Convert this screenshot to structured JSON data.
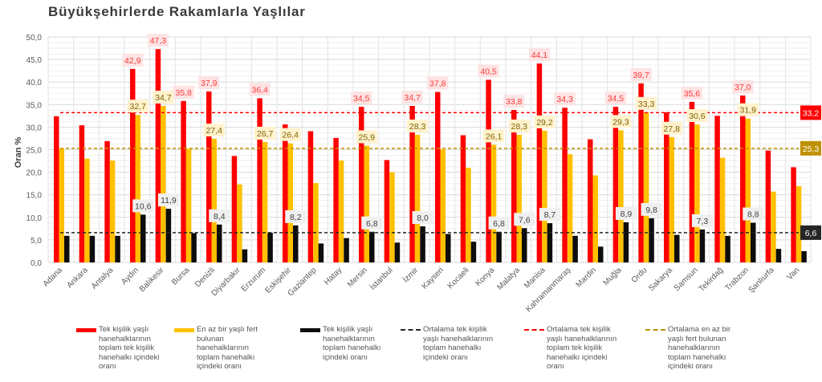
{
  "chart_data": {
    "type": "bar",
    "title": "Büyükşehirlerde Rakamlarla Yaşlılar",
    "xlabel": "",
    "ylabel": "Oran %",
    "ylim": [
      0,
      50
    ],
    "yticks": [
      "0,0",
      "5,0",
      "10,0",
      "15,0",
      "20,0",
      "25,0",
      "30,0",
      "35,0",
      "40,0",
      "45,0",
      "50,0"
    ],
    "grid": true,
    "legend_position": "bottom",
    "categories": [
      "Adana",
      "Ankara",
      "Antalya",
      "Aydın",
      "Balıkesir",
      "Bursa",
      "Denizli",
      "Diyarbakır",
      "Erzurum",
      "Eskişehir",
      "Gaziantep",
      "Hatay",
      "Mersin",
      "İstanbul",
      "İzmir",
      "Kayseri",
      "Kocaeli",
      "Konya",
      "Malatya",
      "Manisa",
      "Kahramanmaraş",
      "Mardin",
      "Muğla",
      "Ordu",
      "Sakarya",
      "Samsun",
      "Tekirdağ",
      "Trabzon",
      "Şanlıurfa",
      "Van"
    ],
    "series": [
      {
        "name": "Tek kişilik yaşlı hanehalklarının toplam tek kişilik hanehalkı içindeki oranı",
        "color": "#ff0000",
        "values": [
          32.4,
          30.4,
          26.9,
          42.9,
          47.3,
          35.8,
          37.9,
          23.6,
          36.4,
          30.6,
          29.1,
          27.6,
          34.5,
          22.7,
          34.7,
          37.8,
          28.2,
          40.5,
          33.8,
          44.1,
          34.3,
          27.3,
          34.5,
          39.7,
          33.3,
          35.6,
          32.5,
          37.0,
          24.8,
          21.1
        ],
        "labels": [
          "",
          "",
          "",
          "42,9",
          "47,3",
          "35,8",
          "37,9",
          "",
          "36,4",
          "",
          "",
          "",
          "34,5",
          "",
          "34,7",
          "37,8",
          "",
          "40,5",
          "33,8",
          "44,1",
          "34,3",
          "",
          "34,5",
          "39,7",
          "",
          "35,6",
          "",
          "37,0",
          "",
          ""
        ]
      },
      {
        "name": "En az bir yaşlı fert bulunan hanehalklarının toplam hanehalkı içindeki oranı",
        "color": "#ffc000",
        "values": [
          25.2,
          23.0,
          22.6,
          32.7,
          34.7,
          25.2,
          27.4,
          17.3,
          26.7,
          26.4,
          17.6,
          22.6,
          25.9,
          20.0,
          28.3,
          25.1,
          21.0,
          26.1,
          28.3,
          29.2,
          24.0,
          19.3,
          29.3,
          33.3,
          27.8,
          30.6,
          23.2,
          31.9,
          15.7,
          16.9
        ],
        "labels": [
          "",
          "",
          "",
          "32,7",
          "34,7",
          "",
          "27,4",
          "",
          "26,7",
          "26,4",
          "",
          "",
          "25,9",
          "",
          "28,3",
          "",
          "",
          "26,1",
          "28,3",
          "29,2",
          "",
          "",
          "29,3",
          "33,3",
          "27,8",
          "30,6",
          "",
          "31,9",
          "",
          ""
        ]
      },
      {
        "name": "Tek kişilik yaşlı hanehalklarının toplam hanehalkı içindeki oranı",
        "color": "#0d0d0d",
        "values": [
          5.9,
          5.9,
          5.9,
          10.6,
          11.9,
          6.5,
          8.4,
          2.9,
          6.6,
          8.2,
          4.2,
          5.4,
          6.8,
          4.4,
          8.0,
          6.3,
          4.6,
          6.8,
          7.6,
          8.7,
          5.9,
          3.5,
          8.9,
          9.8,
          6.1,
          7.3,
          5.9,
          8.8,
          3.0,
          2.5
        ],
        "labels": [
          "",
          "",
          "",
          "10,6",
          "11,9",
          "",
          "8,4",
          "",
          "",
          "8,2",
          "",
          "",
          "6,8",
          "",
          "8,0",
          "",
          "",
          "6,8",
          "7,6",
          "8,7",
          "",
          "",
          "8,9",
          "9,8",
          "",
          "7,3",
          "",
          "8,8",
          "",
          ""
        ]
      }
    ],
    "reference_lines": [
      {
        "name": "Ortalama tek kişilik yaşlı hanehalklarının toplam hanehalkı içindeki oranı",
        "value": 6.6,
        "label": "6,6",
        "color": "#262626"
      },
      {
        "name": "Ortalama tek kişilik yaşlı hanehalklarının toplam tek kişilik hanehalkı içindeki oranı",
        "value": 33.2,
        "label": "33,2",
        "color": "#ff0000"
      },
      {
        "name": "Ortalama en az bir yaşlı fert bulunan hanehalklarının toplam hanehalkı içindeki oranı",
        "value": 25.3,
        "label": "25,3",
        "color": "#bf9000"
      }
    ]
  }
}
